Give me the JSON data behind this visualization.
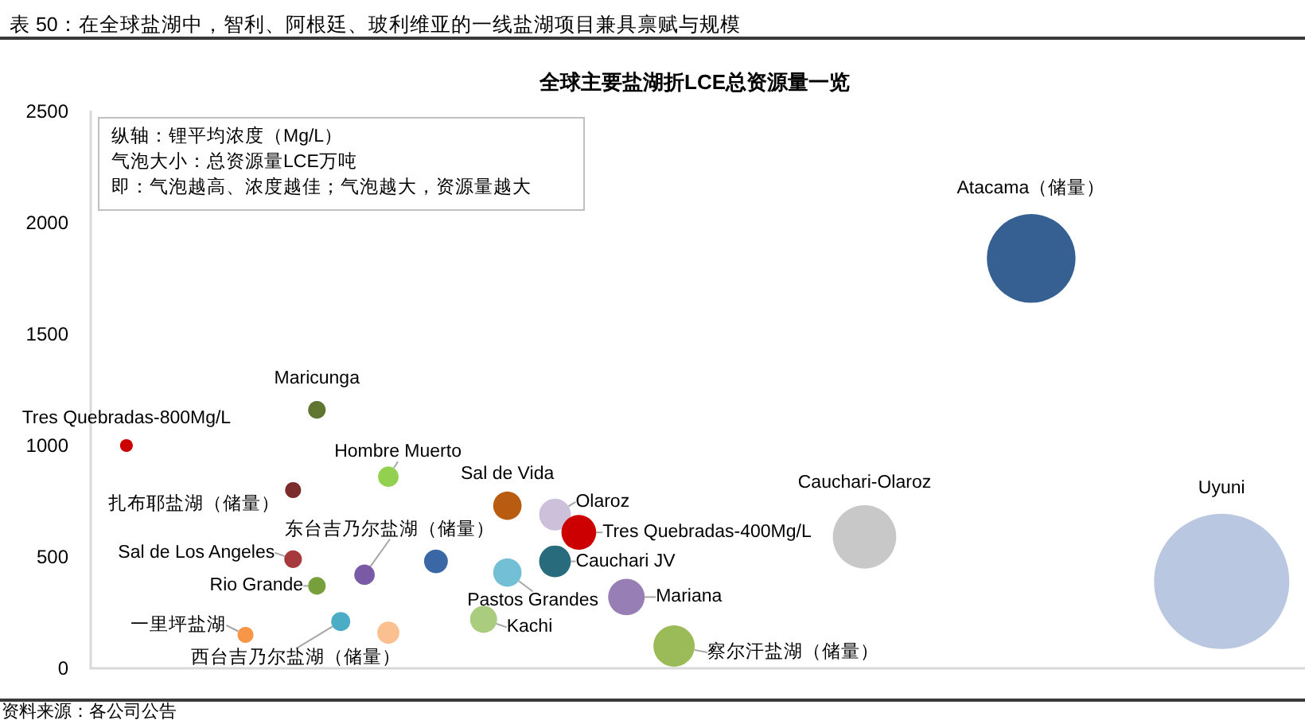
{
  "chart_data": {
    "type": "bubble",
    "title": "表 50：在全球盐湖中，智利、阿根廷、玻利维亚的一线盐湖项目兼具禀赋与规模",
    "subtitle": "全球主要盐湖折LCE总资源量一览",
    "annotations": [
      "纵轴：锂平均浓度（Mg/L）",
      "气泡大小：总资源量LCE万吨",
      "即：气泡越高、浓度越佳；气泡越大，资源量越大",
      "资料来源：各公司公告"
    ],
    "categories": [
      null,
      null,
      null,
      null,
      null,
      null,
      null,
      null,
      null,
      null,
      null,
      null,
      null,
      null,
      null,
      null,
      null,
      null,
      null,
      null,
      null,
      null,
      null,
      null,
      null,
      null,
      null,
      null,
      null,
      null,
      null,
      null,
      null,
      null,
      null,
      null,
      null,
      null,
      null,
      null,
      null,
      null,
      null,
      null,
      null,
      null,
      null,
      null,
      null,
      null,
      null
    ],
    "ylim": [
      0,
      2500
    ],
    "yticks": [
      0,
      500,
      1000,
      1500,
      2000,
      2500
    ],
    "tick_labels": "y",
    "series": [
      {
        "name": "Tres Quebradas-800Mg/L",
        "color": "#cc0000",
        "values": [
          null,
          1000,
          null,
          null,
          null,
          null,
          null,
          null,
          null,
          null,
          null,
          null,
          null,
          null,
          null,
          null,
          null,
          null,
          null,
          null,
          null,
          null,
          null,
          null,
          null,
          null,
          null,
          null,
          null,
          null,
          null,
          null,
          null,
          null,
          null,
          null,
          null,
          null,
          null,
          null,
          null,
          null,
          null,
          null,
          null,
          null,
          null,
          null,
          null,
          null,
          null
        ],
        "sizes": [
          null,
          0.009,
          null,
          null,
          null,
          null,
          null,
          null,
          null,
          null,
          null,
          null,
          null,
          null,
          null,
          null,
          null,
          null,
          null,
          null,
          null,
          null,
          null,
          null,
          null,
          null,
          null,
          null,
          null,
          null,
          null,
          null,
          null,
          null,
          null,
          null,
          null,
          null,
          null,
          null,
          null,
          null,
          null,
          null,
          null,
          null,
          null,
          null,
          null,
          null,
          null
        ]
      },
      {
        "name": "Maricunga",
        "color": "#5f7530",
        "values": [
          null,
          null,
          null,
          null,
          null,
          null,
          null,
          null,
          null,
          1160,
          null,
          null,
          null,
          null,
          null,
          null,
          null,
          null,
          null,
          null,
          null,
          null,
          null,
          null,
          null,
          null,
          null,
          null,
          null,
          null,
          null,
          null,
          null,
          null,
          null,
          null,
          null,
          null,
          null,
          null,
          null,
          null,
          null,
          null,
          null,
          null,
          null,
          null,
          null,
          null,
          null
        ],
        "sizes": [
          null,
          null,
          null,
          null,
          null,
          null,
          null,
          null,
          null,
          0.017,
          null,
          null,
          null,
          null,
          null,
          null,
          null,
          null,
          null,
          null,
          null,
          null,
          null,
          null,
          null,
          null,
          null,
          null,
          null,
          null,
          null,
          null,
          null,
          null,
          null,
          null,
          null,
          null,
          null,
          null,
          null,
          null,
          null,
          null,
          null,
          null,
          null,
          null,
          null,
          null,
          null
        ]
      },
      {
        "name": "扎布耶盐湖（储量）",
        "color": "#7b2c2c",
        "values": [
          null,
          null,
          null,
          null,
          null,
          null,
          null,
          null,
          800,
          null,
          null,
          null,
          null,
          null,
          null,
          null,
          null,
          null,
          null,
          null,
          null,
          null,
          null,
          null,
          null,
          null,
          null,
          null,
          null,
          null,
          null,
          null,
          null,
          null,
          null,
          null,
          null,
          null,
          null,
          null,
          null,
          null,
          null,
          null,
          null,
          null,
          null,
          null,
          null,
          null,
          null
        ],
        "sizes": [
          null,
          null,
          null,
          null,
          null,
          null,
          null,
          null,
          0.014,
          null,
          null,
          null,
          null,
          null,
          null,
          null,
          null,
          null,
          null,
          null,
          null,
          null,
          null,
          null,
          null,
          null,
          null,
          null,
          null,
          null,
          null,
          null,
          null,
          null,
          null,
          null,
          null,
          null,
          null,
          null,
          null,
          null,
          null,
          null,
          null,
          null,
          null,
          null,
          null,
          null,
          null
        ]
      },
      {
        "name": "Hombre Muerto",
        "color": "#92d050",
        "values": [
          null,
          null,
          null,
          null,
          null,
          null,
          null,
          null,
          null,
          null,
          null,
          null,
          860,
          null,
          null,
          null,
          null,
          null,
          null,
          null,
          null,
          null,
          null,
          null,
          null,
          null,
          null,
          null,
          null,
          null,
          null,
          null,
          null,
          null,
          null,
          null,
          null,
          null,
          null,
          null,
          null,
          null,
          null,
          null,
          null,
          null,
          null,
          null,
          null,
          null,
          null
        ],
        "sizes": [
          null,
          null,
          null,
          null,
          null,
          null,
          null,
          null,
          null,
          null,
          null,
          null,
          0.023,
          null,
          null,
          null,
          null,
          null,
          null,
          null,
          null,
          null,
          null,
          null,
          null,
          null,
          null,
          null,
          null,
          null,
          null,
          null,
          null,
          null,
          null,
          null,
          null,
          null,
          null,
          null,
          null,
          null,
          null,
          null,
          null,
          null,
          null,
          null,
          null,
          null,
          null
        ]
      },
      {
        "name": "Sal de Vida",
        "color": "#b85c12",
        "values": [
          null,
          null,
          null,
          null,
          null,
          null,
          null,
          null,
          null,
          null,
          null,
          null,
          null,
          null,
          null,
          null,
          null,
          730,
          null,
          null,
          null,
          null,
          null,
          null,
          null,
          null,
          null,
          null,
          null,
          null,
          null,
          null,
          null,
          null,
          null,
          null,
          null,
          null,
          null,
          null,
          null,
          null,
          null,
          null,
          null,
          null,
          null,
          null,
          null,
          null,
          null
        ],
        "sizes": [
          null,
          null,
          null,
          null,
          null,
          null,
          null,
          null,
          null,
          null,
          null,
          null,
          null,
          null,
          null,
          null,
          null,
          0.044,
          null,
          null,
          null,
          null,
          null,
          null,
          null,
          null,
          null,
          null,
          null,
          null,
          null,
          null,
          null,
          null,
          null,
          null,
          null,
          null,
          null,
          null,
          null,
          null,
          null,
          null,
          null,
          null,
          null,
          null,
          null,
          null,
          null
        ]
      },
      {
        "name": "Olaroz",
        "color": "#ccc0da",
        "values": [
          null,
          null,
          null,
          null,
          null,
          null,
          null,
          null,
          null,
          null,
          null,
          null,
          null,
          null,
          null,
          null,
          null,
          null,
          null,
          690,
          null,
          null,
          null,
          null,
          null,
          null,
          null,
          null,
          null,
          null,
          null,
          null,
          null,
          null,
          null,
          null,
          null,
          null,
          null,
          null,
          null,
          null,
          null,
          null,
          null,
          null,
          null,
          null,
          null,
          null,
          null
        ],
        "sizes": [
          null,
          null,
          null,
          null,
          null,
          null,
          null,
          null,
          null,
          null,
          null,
          null,
          null,
          null,
          null,
          null,
          null,
          null,
          null,
          0.055,
          null,
          null,
          null,
          null,
          null,
          null,
          null,
          null,
          null,
          null,
          null,
          null,
          null,
          null,
          null,
          null,
          null,
          null,
          null,
          null,
          null,
          null,
          null,
          null,
          null,
          null,
          null,
          null,
          null,
          null,
          null
        ]
      },
      {
        "name": "Tres Quebradas-400Mg/L",
        "color": "#cc0000",
        "values": [
          null,
          null,
          null,
          null,
          null,
          null,
          null,
          null,
          null,
          null,
          null,
          null,
          null,
          null,
          null,
          null,
          null,
          null,
          null,
          null,
          610,
          null,
          null,
          null,
          null,
          null,
          null,
          null,
          null,
          null,
          null,
          null,
          null,
          null,
          null,
          null,
          null,
          null,
          null,
          null,
          null,
          null,
          null,
          null,
          null,
          null,
          null,
          null,
          null,
          null,
          null
        ],
        "sizes": [
          null,
          null,
          null,
          null,
          null,
          null,
          null,
          null,
          null,
          null,
          null,
          null,
          null,
          null,
          null,
          null,
          null,
          null,
          null,
          null,
          0.066,
          null,
          null,
          null,
          null,
          null,
          null,
          null,
          null,
          null,
          null,
          null,
          null,
          null,
          null,
          null,
          null,
          null,
          null,
          null,
          null,
          null,
          null,
          null,
          null,
          null,
          null,
          null,
          null,
          null,
          null
        ]
      },
      {
        "name": "Cauchari-Olaroz",
        "color": "#c8c8c8",
        "values": [
          null,
          null,
          null,
          null,
          null,
          null,
          null,
          null,
          null,
          null,
          null,
          null,
          null,
          null,
          null,
          null,
          null,
          null,
          null,
          null,
          null,
          null,
          null,
          null,
          null,
          null,
          null,
          null,
          null,
          null,
          null,
          null,
          590,
          null,
          null,
          null,
          null,
          null,
          null,
          null,
          null,
          null,
          null,
          null,
          null,
          null,
          null,
          null,
          null,
          null,
          null
        ],
        "sizes": [
          null,
          null,
          null,
          null,
          null,
          null,
          null,
          null,
          null,
          null,
          null,
          null,
          null,
          null,
          null,
          null,
          null,
          null,
          null,
          null,
          null,
          null,
          null,
          null,
          null,
          null,
          null,
          null,
          null,
          null,
          null,
          null,
          0.22,
          null,
          null,
          null,
          null,
          null,
          null,
          null,
          null,
          null,
          null,
          null,
          null,
          null,
          null,
          null,
          null,
          null,
          null
        ]
      },
      {
        "name": "Atacama（储量）",
        "color": "#376092",
        "values": [
          null,
          null,
          null,
          null,
          null,
          null,
          null,
          null,
          null,
          null,
          null,
          null,
          null,
          null,
          null,
          null,
          null,
          null,
          null,
          null,
          null,
          null,
          null,
          null,
          null,
          null,
          null,
          null,
          null,
          null,
          null,
          null,
          null,
          null,
          null,
          null,
          null,
          null,
          null,
          1840,
          null,
          null,
          null,
          null,
          null,
          null,
          null,
          null,
          null,
          null,
          null
        ],
        "sizes": [
          null,
          null,
          null,
          null,
          null,
          null,
          null,
          null,
          null,
          null,
          null,
          null,
          null,
          null,
          null,
          null,
          null,
          null,
          null,
          null,
          null,
          null,
          null,
          null,
          null,
          null,
          null,
          null,
          null,
          null,
          null,
          null,
          null,
          null,
          null,
          null,
          null,
          null,
          null,
          0.43,
          null,
          null,
          null,
          null,
          null,
          null,
          null,
          null,
          null,
          null,
          null
        ]
      },
      {
        "name": "Uyuni",
        "color": "#b9c7e0",
        "values": [
          null,
          null,
          null,
          null,
          null,
          null,
          null,
          null,
          null,
          null,
          null,
          null,
          null,
          null,
          null,
          null,
          null,
          null,
          null,
          null,
          null,
          null,
          null,
          null,
          null,
          null,
          null,
          null,
          null,
          null,
          null,
          null,
          null,
          null,
          null,
          null,
          null,
          null,
          null,
          null,
          null,
          null,
          null,
          null,
          null,
          null,
          null,
          390,
          null,
          null,
          null
        ],
        "sizes": [
          null,
          null,
          null,
          null,
          null,
          null,
          null,
          null,
          null,
          null,
          null,
          null,
          null,
          null,
          null,
          null,
          null,
          null,
          null,
          null,
          null,
          null,
          null,
          null,
          null,
          null,
          null,
          null,
          null,
          null,
          null,
          null,
          null,
          null,
          null,
          null,
          null,
          null,
          null,
          null,
          null,
          null,
          null,
          null,
          null,
          null,
          null,
          1,
          null,
          null,
          null
        ]
      },
      {
        "name": "Sal de Los Angeles",
        "color": "#a5393b",
        "values": [
          null,
          null,
          null,
          null,
          null,
          null,
          null,
          null,
          490,
          null,
          null,
          null,
          null,
          null,
          null,
          null,
          null,
          null,
          null,
          null,
          null,
          null,
          null,
          null,
          null,
          null,
          null,
          null,
          null,
          null,
          null,
          null,
          null,
          null,
          null,
          null,
          null,
          null,
          null,
          null,
          null,
          null,
          null,
          null,
          null,
          null,
          null,
          null,
          null,
          null,
          null
        ],
        "sizes": [
          null,
          null,
          null,
          null,
          null,
          null,
          null,
          null,
          0.017,
          null,
          null,
          null,
          null,
          null,
          null,
          null,
          null,
          null,
          null,
          null,
          null,
          null,
          null,
          null,
          null,
          null,
          null,
          null,
          null,
          null,
          null,
          null,
          null,
          null,
          null,
          null,
          null,
          null,
          null,
          null,
          null,
          null,
          null,
          null,
          null,
          null,
          null,
          null,
          null,
          null,
          null
        ]
      },
      {
        "name": "东台吉乃尔盐湖（储量）",
        "color": "#7a5aa6",
        "values": [
          null,
          null,
          null,
          null,
          null,
          null,
          null,
          null,
          null,
          null,
          null,
          420,
          null,
          null,
          null,
          null,
          null,
          null,
          null,
          null,
          null,
          null,
          null,
          null,
          null,
          null,
          null,
          null,
          null,
          null,
          null,
          null,
          null,
          null,
          null,
          null,
          null,
          null,
          null,
          null,
          null,
          null,
          null,
          null,
          null,
          null,
          null,
          null,
          null,
          null,
          null
        ],
        "sizes": [
          null,
          null,
          null,
          null,
          null,
          null,
          null,
          null,
          null,
          null,
          null,
          0.023,
          null,
          null,
          null,
          null,
          null,
          null,
          null,
          null,
          null,
          null,
          null,
          null,
          null,
          null,
          null,
          null,
          null,
          null,
          null,
          null,
          null,
          null,
          null,
          null,
          null,
          null,
          null,
          null,
          null,
          null,
          null,
          null,
          null,
          null,
          null,
          null,
          null,
          null,
          null
        ]
      },
      {
        "color": "#3a67a5",
        "values": [
          null,
          null,
          null,
          null,
          null,
          null,
          null,
          null,
          null,
          null,
          null,
          null,
          null,
          null,
          480,
          null,
          null,
          null,
          null,
          null,
          null,
          null,
          null,
          null,
          null,
          null,
          null,
          null,
          null,
          null,
          null,
          null,
          null,
          null,
          null,
          null,
          null,
          null,
          null,
          null,
          null,
          null,
          null,
          null,
          null,
          null,
          null,
          null,
          null,
          null,
          null
        ],
        "sizes": [
          null,
          null,
          null,
          null,
          null,
          null,
          null,
          null,
          null,
          null,
          null,
          null,
          null,
          null,
          0.031,
          null,
          null,
          null,
          null,
          null,
          null,
          null,
          null,
          null,
          null,
          null,
          null,
          null,
          null,
          null,
          null,
          null,
          null,
          null,
          null,
          null,
          null,
          null,
          null,
          null,
          null,
          null,
          null,
          null,
          null,
          null,
          null,
          null,
          null,
          null,
          null
        ]
      },
      {
        "name": "Rio Grande",
        "color": "#77a03c",
        "values": [
          null,
          null,
          null,
          null,
          null,
          null,
          null,
          null,
          null,
          370,
          null,
          null,
          null,
          null,
          null,
          null,
          null,
          null,
          null,
          null,
          null,
          null,
          null,
          null,
          null,
          null,
          null,
          null,
          null,
          null,
          null,
          null,
          null,
          null,
          null,
          null,
          null,
          null,
          null,
          null,
          null,
          null,
          null,
          null,
          null,
          null,
          null,
          null,
          null,
          null,
          null
        ],
        "sizes": [
          null,
          null,
          null,
          null,
          null,
          null,
          null,
          null,
          null,
          0.017,
          null,
          null,
          null,
          null,
          null,
          null,
          null,
          null,
          null,
          null,
          null,
          null,
          null,
          null,
          null,
          null,
          null,
          null,
          null,
          null,
          null,
          null,
          null,
          null,
          null,
          null,
          null,
          null,
          null,
          null,
          null,
          null,
          null,
          null,
          null,
          null,
          null,
          null,
          null,
          null,
          null
        ]
      },
      {
        "name": "Pastos Grandes",
        "color": "#72bfd6",
        "values": [
          null,
          null,
          null,
          null,
          null,
          null,
          null,
          null,
          null,
          null,
          null,
          null,
          null,
          null,
          null,
          null,
          null,
          430,
          null,
          null,
          null,
          null,
          null,
          null,
          null,
          null,
          null,
          null,
          null,
          null,
          null,
          null,
          null,
          null,
          null,
          null,
          null,
          null,
          null,
          null,
          null,
          null,
          null,
          null,
          null,
          null,
          null,
          null,
          null,
          null,
          null
        ],
        "sizes": [
          null,
          null,
          null,
          null,
          null,
          null,
          null,
          null,
          null,
          null,
          null,
          null,
          null,
          null,
          null,
          null,
          null,
          0.044,
          null,
          null,
          null,
          null,
          null,
          null,
          null,
          null,
          null,
          null,
          null,
          null,
          null,
          null,
          null,
          null,
          null,
          null,
          null,
          null,
          null,
          null,
          null,
          null,
          null,
          null,
          null,
          null,
          null,
          null,
          null,
          null,
          null
        ]
      },
      {
        "name": "Cauchari JV",
        "color": "#276b7c",
        "values": [
          null,
          null,
          null,
          null,
          null,
          null,
          null,
          null,
          null,
          null,
          null,
          null,
          null,
          null,
          null,
          null,
          null,
          null,
          null,
          480,
          null,
          null,
          null,
          null,
          null,
          null,
          null,
          null,
          null,
          null,
          null,
          null,
          null,
          null,
          null,
          null,
          null,
          null,
          null,
          null,
          null,
          null,
          null,
          null,
          null,
          null,
          null,
          null,
          null,
          null,
          null
        ],
        "sizes": [
          null,
          null,
          null,
          null,
          null,
          null,
          null,
          null,
          null,
          null,
          null,
          null,
          null,
          null,
          null,
          null,
          null,
          null,
          null,
          0.055,
          null,
          null,
          null,
          null,
          null,
          null,
          null,
          null,
          null,
          null,
          null,
          null,
          null,
          null,
          null,
          null,
          null,
          null,
          null,
          null,
          null,
          null,
          null,
          null,
          null,
          null,
          null,
          null,
          null,
          null,
          null
        ]
      },
      {
        "name": "Mariana",
        "color": "#977eb5",
        "values": [
          null,
          null,
          null,
          null,
          null,
          null,
          null,
          null,
          null,
          null,
          null,
          null,
          null,
          null,
          null,
          null,
          null,
          null,
          null,
          null,
          null,
          null,
          320,
          null,
          null,
          null,
          null,
          null,
          null,
          null,
          null,
          null,
          null,
          null,
          null,
          null,
          null,
          null,
          null,
          null,
          null,
          null,
          null,
          null,
          null,
          null,
          null,
          null,
          null,
          null,
          null
        ],
        "sizes": [
          null,
          null,
          null,
          null,
          null,
          null,
          null,
          null,
          null,
          null,
          null,
          null,
          null,
          null,
          null,
          null,
          null,
          null,
          null,
          null,
          null,
          null,
          0.073,
          null,
          null,
          null,
          null,
          null,
          null,
          null,
          null,
          null,
          null,
          null,
          null,
          null,
          null,
          null,
          null,
          null,
          null,
          null,
          null,
          null,
          null,
          null,
          null,
          null,
          null,
          null,
          null
        ]
      },
      {
        "name": "Kachi",
        "color": "#aacc7f",
        "values": [
          null,
          null,
          null,
          null,
          null,
          null,
          null,
          null,
          null,
          null,
          null,
          null,
          null,
          null,
          null,
          null,
          220,
          null,
          null,
          null,
          null,
          null,
          null,
          null,
          null,
          null,
          null,
          null,
          null,
          null,
          null,
          null,
          null,
          null,
          null,
          null,
          null,
          null,
          null,
          null,
          null,
          null,
          null,
          null,
          null,
          null,
          null,
          null,
          null,
          null,
          null
        ],
        "sizes": [
          null,
          null,
          null,
          null,
          null,
          null,
          null,
          null,
          null,
          null,
          null,
          null,
          null,
          null,
          null,
          null,
          0.04,
          null,
          null,
          null,
          null,
          null,
          null,
          null,
          null,
          null,
          null,
          null,
          null,
          null,
          null,
          null,
          null,
          null,
          null,
          null,
          null,
          null,
          null,
          null,
          null,
          null,
          null,
          null,
          null,
          null,
          null,
          null,
          null,
          null,
          null
        ]
      },
      {
        "name": "一里坪盐湖",
        "color": "#f79646",
        "values": [
          null,
          null,
          null,
          null,
          null,
          null,
          150,
          null,
          null,
          null,
          null,
          null,
          null,
          null,
          null,
          null,
          null,
          null,
          null,
          null,
          null,
          null,
          null,
          null,
          null,
          null,
          null,
          null,
          null,
          null,
          null,
          null,
          null,
          null,
          null,
          null,
          null,
          null,
          null,
          null,
          null,
          null,
          null,
          null,
          null,
          null,
          null,
          null,
          null,
          null,
          null
        ],
        "sizes": [
          null,
          null,
          null,
          null,
          null,
          null,
          0.014,
          null,
          null,
          null,
          null,
          null,
          null,
          null,
          null,
          null,
          null,
          null,
          null,
          null,
          null,
          null,
          null,
          null,
          null,
          null,
          null,
          null,
          null,
          null,
          null,
          null,
          null,
          null,
          null,
          null,
          null,
          null,
          null,
          null,
          null,
          null,
          null,
          null,
          null,
          null,
          null,
          null,
          null,
          null,
          null
        ]
      },
      {
        "name": "西台吉乃尔盐湖（储量）",
        "color": "#4bacc6",
        "values": [
          null,
          null,
          null,
          null,
          null,
          null,
          null,
          null,
          null,
          null,
          210,
          null,
          null,
          null,
          null,
          null,
          null,
          null,
          null,
          null,
          null,
          null,
          null,
          null,
          null,
          null,
          null,
          null,
          null,
          null,
          null,
          null,
          null,
          null,
          null,
          null,
          null,
          null,
          null,
          null,
          null,
          null,
          null,
          null,
          null,
          null,
          null,
          null,
          null,
          null,
          null
        ],
        "sizes": [
          null,
          null,
          null,
          null,
          null,
          null,
          null,
          null,
          null,
          null,
          0.02,
          null,
          null,
          null,
          null,
          null,
          null,
          null,
          null,
          null,
          null,
          null,
          null,
          null,
          null,
          null,
          null,
          null,
          null,
          null,
          null,
          null,
          null,
          null,
          null,
          null,
          null,
          null,
          null,
          null,
          null,
          null,
          null,
          null,
          null,
          null,
          null,
          null,
          null,
          null,
          null
        ]
      },
      {
        "color": "#fac090",
        "values": [
          null,
          null,
          null,
          null,
          null,
          null,
          null,
          null,
          null,
          null,
          null,
          null,
          160,
          null,
          null,
          null,
          null,
          null,
          null,
          null,
          null,
          null,
          null,
          null,
          null,
          null,
          null,
          null,
          null,
          null,
          null,
          null,
          null,
          null,
          null,
          null,
          null,
          null,
          null,
          null,
          null,
          null,
          null,
          null,
          null,
          null,
          null,
          null,
          null,
          null,
          null
        ],
        "sizes": [
          null,
          null,
          null,
          null,
          null,
          null,
          null,
          null,
          null,
          null,
          null,
          null,
          0.027,
          null,
          null,
          null,
          null,
          null,
          null,
          null,
          null,
          null,
          null,
          null,
          null,
          null,
          null,
          null,
          null,
          null,
          null,
          null,
          null,
          null,
          null,
          null,
          null,
          null,
          null,
          null,
          null,
          null,
          null,
          null,
          null,
          null,
          null,
          null,
          null,
          null,
          null
        ]
      },
      {
        "name": "察尔汗盐湖（储量）",
        "color": "#9bbb59",
        "values": [
          null,
          null,
          null,
          null,
          null,
          null,
          null,
          null,
          null,
          null,
          null,
          null,
          null,
          null,
          null,
          null,
          null,
          null,
          null,
          null,
          null,
          null,
          null,
          null,
          100,
          null,
          null,
          null,
          null,
          null,
          null,
          null,
          null,
          null,
          null,
          null,
          null,
          null,
          null,
          null,
          null,
          null,
          null,
          null,
          null,
          null,
          null,
          null,
          null,
          null,
          null
        ],
        "sizes": [
          null,
          null,
          null,
          null,
          null,
          null,
          null,
          null,
          null,
          null,
          null,
          null,
          null,
          null,
          null,
          null,
          null,
          null,
          null,
          null,
          null,
          null,
          null,
          null,
          0.093,
          null,
          null,
          null,
          null,
          null,
          null,
          null,
          null,
          null,
          null,
          null,
          null,
          null,
          null,
          null,
          null,
          null,
          null,
          null,
          null,
          null,
          null,
          null,
          null,
          null,
          null
        ]
      }
    ]
  }
}
